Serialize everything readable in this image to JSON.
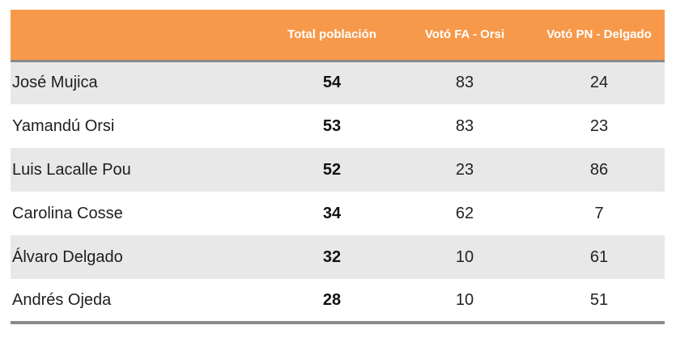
{
  "chart_data": {
    "type": "table",
    "columns": [
      "",
      "Total población",
      "Votó FA - Orsi",
      "Votó PN - Delgado"
    ],
    "rows": [
      {
        "name": "José Mujica",
        "total": 54,
        "fa": 83,
        "pn": 24
      },
      {
        "name": "Yamandú Orsi",
        "total": 53,
        "fa": 83,
        "pn": 23
      },
      {
        "name": "Luis Lacalle Pou",
        "total": 52,
        "fa": 23,
        "pn": 86
      },
      {
        "name": "Carolina Cosse",
        "total": 34,
        "fa": 62,
        "pn": 7
      },
      {
        "name": "Álvaro Delgado",
        "total": 32,
        "fa": 10,
        "pn": 61
      },
      {
        "name": "Andrés Ojeda",
        "total": 28,
        "fa": 10,
        "pn": 51
      }
    ]
  },
  "colors": {
    "header_bg": "#f7994b",
    "header_text": "#ffffff",
    "row_alt": "#e8e8e8",
    "rule": "#8a8a8a"
  }
}
